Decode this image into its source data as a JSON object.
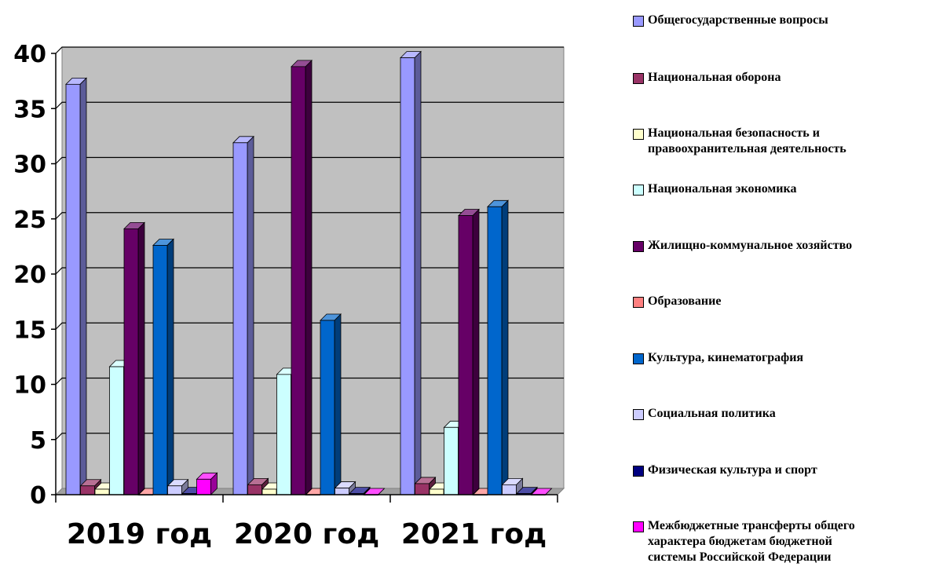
{
  "chart_data": {
    "type": "bar",
    "title": "",
    "xlabel": "",
    "ylabel": "",
    "ylim": [
      0,
      40
    ],
    "yticks": [
      "0",
      "5",
      "10",
      "15",
      "20",
      "25",
      "30",
      "35",
      "40"
    ],
    "grid": true,
    "legend_position": "right",
    "categories": [
      "2019 год",
      "2020 год",
      "2021 год"
    ],
    "series": [
      {
        "name": "Общегосударственные вопросы",
        "color": "#9999ff",
        "values": [
          37.2,
          31.9,
          39.6
        ]
      },
      {
        "name": "Национальная оборона",
        "color": "#993366",
        "values": [
          0.8,
          0.9,
          1.0
        ]
      },
      {
        "name": "Национальная безопасность и\nправоохранительная деятельность",
        "color": "#ffffcc",
        "values": [
          0.5,
          0.5,
          0.5
        ]
      },
      {
        "name": "Национальная экономика",
        "color": "#ccffff",
        "values": [
          11.6,
          10.9,
          6.1
        ]
      },
      {
        "name": "Жилищно-коммунальное хозяйство",
        "color": "#660066",
        "values": [
          24.1,
          38.8,
          25.3
        ]
      },
      {
        "name": "Образование",
        "color": "#ff8080",
        "values": [
          0.0,
          0.0,
          0.0
        ]
      },
      {
        "name": "Культура, кинематография",
        "color": "#0066cc",
        "values": [
          22.6,
          15.8,
          26.1
        ]
      },
      {
        "name": "Социальная политика",
        "color": "#ccccff",
        "values": [
          0.8,
          0.6,
          0.9
        ]
      },
      {
        "name": "Физическая культура и спорт",
        "color": "#000080",
        "values": [
          0.1,
          0.1,
          0.1
        ]
      },
      {
        "name": "Межбюджетные трансферты общего\nхарактера бюджетам бюджетной\nсистемы Российской Федерации",
        "color": "#ff00ff",
        "values": [
          1.4,
          0.0,
          0.0
        ]
      }
    ]
  }
}
